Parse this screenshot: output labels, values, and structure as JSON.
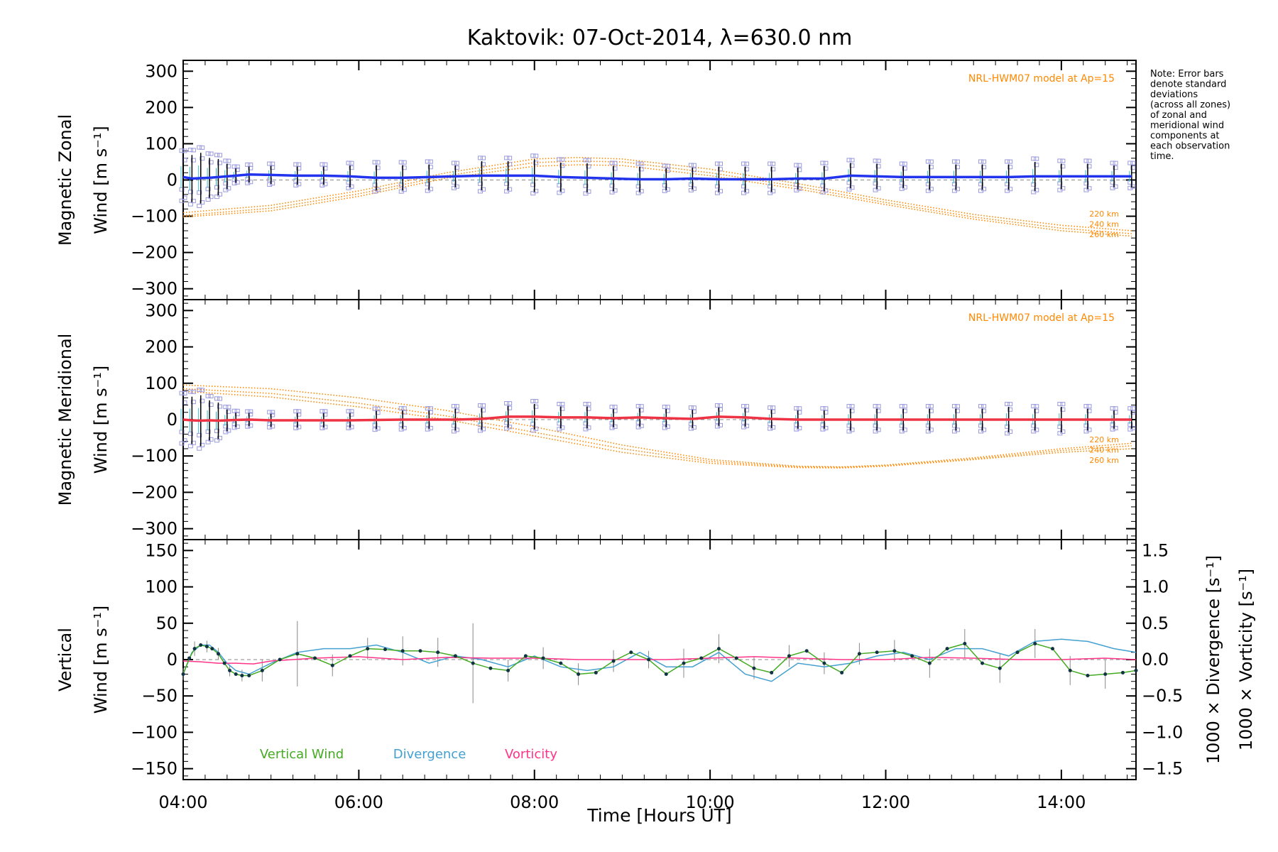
{
  "title": "Kaktovik: 07-Oct-2014, λ=630.0 nm",
  "note": [
    "Note: Error bars",
    "denote standard",
    "deviations",
    "(across all zones)",
    "of zonal and",
    "meridional wind",
    "components at",
    "each observation",
    "time."
  ],
  "colors": {
    "zonal": "#2233ee",
    "meridional": "#ee3344",
    "model": "#ff8800",
    "scatter": "#9999dd",
    "vertical": "#44aa22",
    "divergence": "#44a0d0",
    "vorticity": "#ff3388",
    "errorbar": "#000000",
    "grid_dash": "#888888"
  },
  "chart_data": [
    {
      "type": "line",
      "panel": "zonal",
      "ylabel_line1": "Magnetic Zonal",
      "ylabel_line2": "Wind [m s⁻¹]",
      "ylim": [
        -330,
        330
      ],
      "yticks": [
        300,
        200,
        100,
        0,
        -100,
        -200,
        -300
      ],
      "yticklabels": [
        "300",
        "200",
        "100",
        "0",
        "−100",
        "−200",
        "−300"
      ],
      "model_label": "NRL-HWM07 model at Ap=15",
      "altitude_labels": [
        "220 km",
        "240 km",
        "260 km"
      ],
      "x": [
        4.0,
        4.1,
        4.2,
        4.3,
        4.4,
        4.5,
        4.6,
        4.75,
        5.0,
        5.3,
        5.6,
        5.9,
        6.2,
        6.5,
        6.8,
        7.1,
        7.4,
        7.7,
        8.0,
        8.3,
        8.6,
        8.9,
        9.2,
        9.5,
        9.8,
        10.1,
        10.4,
        10.7,
        11.0,
        11.3,
        11.6,
        11.9,
        12.2,
        12.5,
        12.8,
        13.1,
        13.4,
        13.7,
        14.0,
        14.3,
        14.6,
        14.8
      ],
      "series": [
        {
          "values": [
            8,
            4,
            5,
            6,
            8,
            10,
            12,
            15,
            14,
            12,
            12,
            10,
            6,
            6,
            8,
            10,
            12,
            12,
            12,
            8,
            6,
            4,
            2,
            2,
            4,
            2,
            2,
            2,
            4,
            4,
            12,
            10,
            8,
            8,
            8,
            8,
            8,
            10,
            10,
            10,
            10,
            10
          ]
        }
      ],
      "errorbars": [
        60,
        65,
        70,
        55,
        50,
        35,
        20,
        22,
        25,
        25,
        25,
        30,
        35,
        35,
        35,
        30,
        40,
        40,
        45,
        40,
        40,
        35,
        35,
        30,
        30,
        35,
        35,
        35,
        30,
        35,
        35,
        35,
        30,
        35,
        35,
        35,
        35,
        40,
        35,
        35,
        30,
        30
      ],
      "model_curves": [
        {
          "name": "220 km",
          "x": [
            4.0,
            5.0,
            6.0,
            7.0,
            8.0,
            8.5,
            9.0,
            10.0,
            11.0,
            12.0,
            13.0,
            14.0,
            14.8
          ],
          "values": [
            -90,
            -70,
            -30,
            20,
            58,
            62,
            58,
            30,
            -10,
            -55,
            -95,
            -125,
            -140
          ]
        },
        {
          "name": "240 km",
          "x": [
            4.0,
            5.0,
            6.0,
            7.0,
            8.0,
            8.5,
            9.0,
            10.0,
            11.0,
            12.0,
            13.0,
            14.0,
            14.8
          ],
          "values": [
            -98,
            -78,
            -38,
            12,
            48,
            52,
            50,
            20,
            -18,
            -62,
            -102,
            -133,
            -148
          ]
        },
        {
          "name": "260 km",
          "x": [
            4.0,
            5.0,
            6.0,
            7.0,
            8.0,
            8.5,
            9.0,
            10.0,
            11.0,
            12.0,
            13.0,
            14.0,
            14.8
          ],
          "values": [
            -102,
            -85,
            -45,
            5,
            38,
            42,
            40,
            12,
            -25,
            -68,
            -108,
            -140,
            -155
          ]
        }
      ]
    },
    {
      "type": "line",
      "panel": "meridional",
      "ylabel_line1": "Magnetic Meridional",
      "ylabel_line2": "Wind [m s⁻¹]",
      "ylim": [
        -330,
        330
      ],
      "yticks": [
        300,
        200,
        100,
        0,
        -100,
        -200,
        -300
      ],
      "yticklabels": [
        "300",
        "200",
        "100",
        "0",
        "−100",
        "−200",
        "−300"
      ],
      "model_label": "NRL-HWM07 model at Ap=15",
      "altitude_labels": [
        "220 km",
        "240 km",
        "260 km"
      ],
      "x": [
        4.0,
        4.1,
        4.2,
        4.3,
        4.4,
        4.5,
        4.6,
        4.75,
        5.0,
        5.3,
        5.6,
        5.9,
        6.2,
        6.5,
        6.8,
        7.1,
        7.4,
        7.7,
        8.0,
        8.3,
        8.6,
        8.9,
        9.2,
        9.5,
        9.8,
        10.1,
        10.4,
        10.7,
        11.0,
        11.3,
        11.6,
        11.9,
        12.2,
        12.5,
        12.8,
        13.1,
        13.4,
        13.7,
        14.0,
        14.3,
        14.6,
        14.8
      ],
      "series": [
        {
          "values": [
            0,
            -2,
            -3,
            -2,
            -3,
            -2,
            -1,
            0,
            -2,
            -2,
            -2,
            -2,
            -1,
            0,
            0,
            0,
            2,
            8,
            8,
            6,
            6,
            4,
            6,
            4,
            2,
            8,
            6,
            2,
            0,
            0,
            0,
            0,
            0,
            0,
            0,
            0,
            0,
            0,
            0,
            0,
            0,
            0
          ]
        }
      ],
      "errorbars": [
        60,
        65,
        70,
        55,
        50,
        30,
        20,
        18,
        18,
        20,
        20,
        20,
        25,
        25,
        25,
        30,
        30,
        30,
        35,
        30,
        30,
        25,
        25,
        25,
        25,
        25,
        25,
        25,
        25,
        25,
        30,
        30,
        30,
        30,
        30,
        30,
        35,
        30,
        35,
        30,
        25,
        25
      ],
      "model_curves": [
        {
          "name": "220 km",
          "x": [
            4.0,
            5.0,
            6.0,
            7.0,
            8.0,
            9.0,
            10.0,
            11.0,
            11.5,
            12.0,
            13.0,
            14.0,
            14.8
          ],
          "values": [
            95,
            85,
            60,
            25,
            -20,
            -70,
            -110,
            -128,
            -130,
            -125,
            -105,
            -80,
            -65
          ]
        },
        {
          "name": "240 km",
          "x": [
            4.0,
            5.0,
            6.0,
            7.0,
            8.0,
            9.0,
            10.0,
            11.0,
            11.5,
            12.0,
            13.0,
            14.0,
            14.8
          ],
          "values": [
            85,
            72,
            45,
            10,
            -35,
            -80,
            -115,
            -130,
            -131,
            -127,
            -108,
            -85,
            -72
          ]
        },
        {
          "name": "260 km",
          "x": [
            4.0,
            5.0,
            6.0,
            7.0,
            8.0,
            9.0,
            10.0,
            11.0,
            11.5,
            12.0,
            13.0,
            14.0,
            14.8
          ],
          "values": [
            78,
            62,
            35,
            0,
            -45,
            -90,
            -120,
            -132,
            -133,
            -128,
            -110,
            -90,
            -80
          ]
        }
      ]
    },
    {
      "type": "line",
      "panel": "vertical",
      "ylabel_line1": "Vertical",
      "ylabel_line2": "Wind [m s⁻¹]",
      "ylim": [
        -165,
        165
      ],
      "yticks": [
        150,
        100,
        50,
        0,
        -50,
        -100,
        -150
      ],
      "yticklabels": [
        "150",
        "100",
        "50",
        "0",
        "−50",
        "−100",
        "−150"
      ],
      "y2label_div": "1000 × Divergence [s⁻¹]",
      "y2label_vor": "1000 × Vorticity [s⁻¹]",
      "y2lim": [
        -1.65,
        1.65
      ],
      "y2ticks": [
        1.5,
        1.0,
        0.5,
        0.0,
        -0.5,
        -1.0,
        -1.5
      ],
      "y2ticklabels": [
        "1.5",
        "1.0",
        "0.5",
        "0.0",
        "−0.5",
        "−1.0",
        "−1.5"
      ],
      "xlabel": "Time [Hours UT]",
      "xticks": [
        4,
        6,
        8,
        10,
        12,
        14
      ],
      "xticklabels": [
        "04:00",
        "06:00",
        "08:00",
        "10:00",
        "12:00",
        "14:00"
      ],
      "xlim": [
        4.0,
        14.85
      ],
      "legend": [
        "Vertical Wind",
        "Divergence",
        "Vorticity"
      ],
      "series": [
        {
          "name": "Vertical Wind",
          "x": [
            4.0,
            4.07,
            4.13,
            4.2,
            4.27,
            4.33,
            4.4,
            4.47,
            4.53,
            4.6,
            4.67,
            4.75,
            4.9,
            5.1,
            5.3,
            5.5,
            5.7,
            5.9,
            6.1,
            6.3,
            6.5,
            6.7,
            6.9,
            7.1,
            7.3,
            7.5,
            7.7,
            7.9,
            8.1,
            8.3,
            8.5,
            8.7,
            8.9,
            9.1,
            9.3,
            9.5,
            9.7,
            9.9,
            10.1,
            10.3,
            10.5,
            10.7,
            10.9,
            11.1,
            11.3,
            11.5,
            11.7,
            11.9,
            12.1,
            12.3,
            12.5,
            12.7,
            12.9,
            13.1,
            13.3,
            13.5,
            13.7,
            13.9,
            14.1,
            14.3,
            14.5,
            14.7,
            14.85
          ],
          "values": [
            -20,
            2,
            15,
            20,
            18,
            15,
            8,
            -5,
            -15,
            -20,
            -22,
            -22,
            -15,
            0,
            8,
            2,
            -8,
            5,
            15,
            14,
            12,
            12,
            10,
            5,
            -5,
            -12,
            -15,
            5,
            2,
            -5,
            -20,
            -18,
            -2,
            10,
            0,
            -20,
            -5,
            2,
            15,
            2,
            -12,
            -18,
            5,
            12,
            -5,
            -18,
            8,
            10,
            12,
            5,
            -5,
            15,
            22,
            -5,
            -12,
            10,
            22,
            15,
            -15,
            -22,
            -20,
            -18,
            -15
          ]
        },
        {
          "name": "Divergence",
          "x": [
            4.0,
            4.1,
            4.2,
            4.3,
            4.4,
            4.5,
            4.6,
            4.75,
            5.0,
            5.3,
            5.6,
            5.9,
            6.2,
            6.5,
            6.8,
            7.1,
            7.4,
            7.7,
            8.0,
            8.3,
            8.6,
            8.9,
            9.2,
            9.5,
            9.8,
            10.1,
            10.4,
            10.7,
            11.0,
            11.3,
            11.6,
            11.9,
            12.2,
            12.5,
            12.8,
            13.1,
            13.4,
            13.7,
            14.0,
            14.3,
            14.6,
            14.85
          ],
          "values": [
            -0.2,
            0.1,
            0.2,
            0.2,
            0.1,
            -0.05,
            -0.15,
            -0.2,
            -0.05,
            0.1,
            0.15,
            0.15,
            0.2,
            0.1,
            -0.05,
            0.05,
            0.0,
            -0.1,
            0.05,
            -0.1,
            -0.15,
            -0.1,
            0.1,
            -0.1,
            -0.1,
            0.1,
            -0.2,
            -0.3,
            -0.05,
            -0.1,
            -0.05,
            0.05,
            0.1,
            0.0,
            0.15,
            0.15,
            0.05,
            0.25,
            0.28,
            0.25,
            0.15,
            0.1
          ]
        },
        {
          "name": "Vorticity",
          "x": [
            4.0,
            4.2,
            4.4,
            4.6,
            4.8,
            5.0,
            5.5,
            6.0,
            6.5,
            7.0,
            7.5,
            8.0,
            8.5,
            9.0,
            9.5,
            10.0,
            10.5,
            11.0,
            11.5,
            12.0,
            12.5,
            13.0,
            13.5,
            14.0,
            14.5,
            14.85
          ],
          "values": [
            -0.02,
            -0.03,
            -0.05,
            -0.05,
            -0.06,
            -0.02,
            0.02,
            0.04,
            0.0,
            0.03,
            0.02,
            0.02,
            0.0,
            0.0,
            0.0,
            0.02,
            0.04,
            0.02,
            0.0,
            0.0,
            0.03,
            0.02,
            0.0,
            0.0,
            0.02,
            0.0
          ]
        }
      ],
      "errorbars_x": [
        4.0,
        4.13,
        4.27,
        4.4,
        4.53,
        4.67,
        4.9,
        5.3,
        5.7,
        6.1,
        6.5,
        6.9,
        7.3,
        7.7,
        8.1,
        8.5,
        8.9,
        9.3,
        9.7,
        10.1,
        10.5,
        10.9,
        11.3,
        11.7,
        12.1,
        12.5,
        12.9,
        13.3,
        13.7,
        14.1,
        14.5
      ],
      "errorbars_y": [
        8,
        10,
        8,
        8,
        8,
        8,
        15,
        45,
        15,
        15,
        20,
        20,
        55,
        15,
        15,
        15,
        15,
        12,
        20,
        20,
        15,
        15,
        15,
        15,
        15,
        20,
        20,
        20,
        20,
        20,
        20
      ]
    }
  ]
}
